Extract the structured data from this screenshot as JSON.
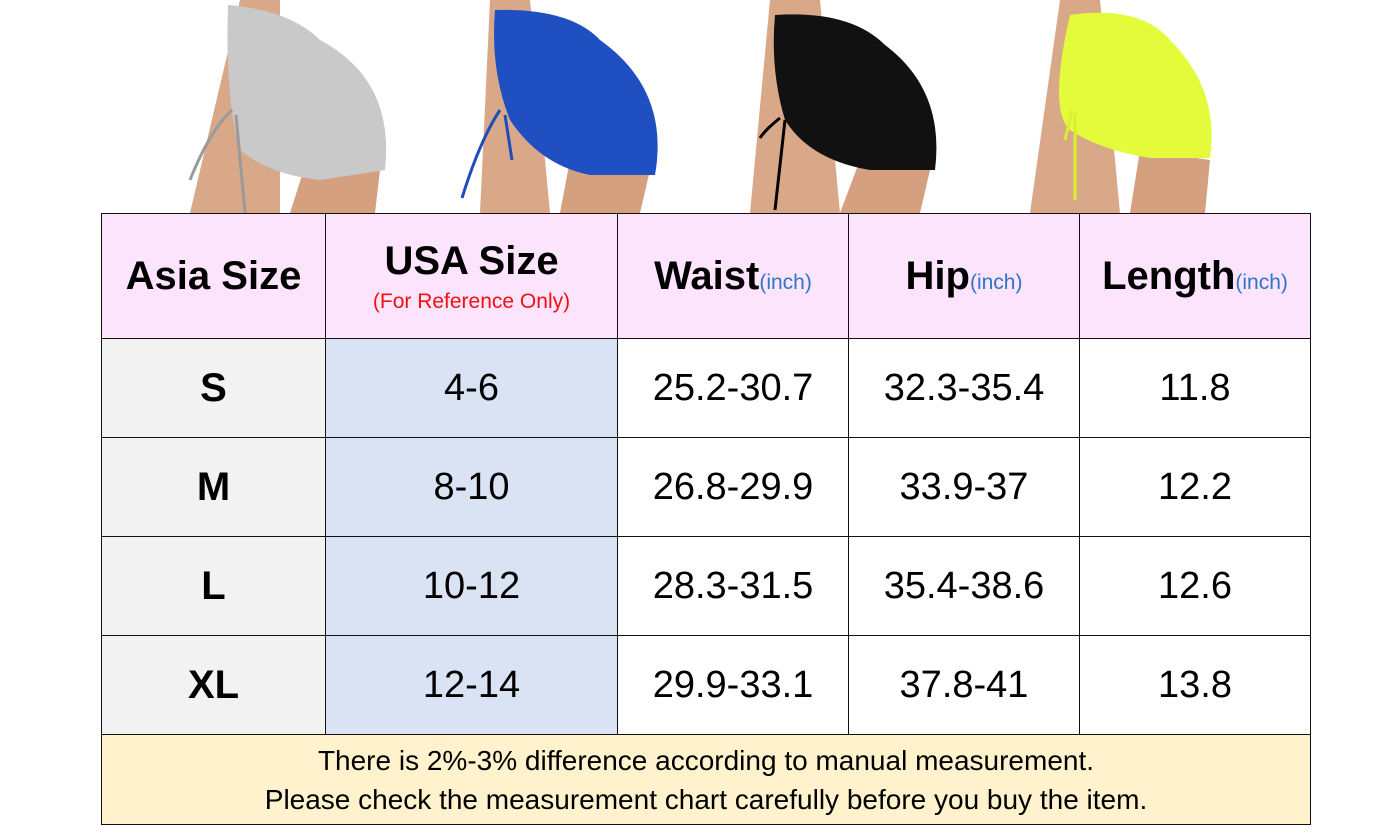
{
  "products": [
    {
      "color_name": "gray",
      "color": "#c9c9c9",
      "string": "#9a9a9a"
    },
    {
      "color_name": "blue",
      "color": "#1f4fc0",
      "string": "#1d4db8"
    },
    {
      "color_name": "black",
      "color": "#111111",
      "string": "#000000"
    },
    {
      "color_name": "neon-yellow",
      "color": "#e4fb3c",
      "string": "#d8f030"
    }
  ],
  "table": {
    "headers": [
      {
        "main": "Asia Size",
        "unit": "",
        "sub": ""
      },
      {
        "main": "USA Size",
        "unit": "",
        "sub": "(For Reference Only)"
      },
      {
        "main": "Waist",
        "unit": "(inch)",
        "sub": ""
      },
      {
        "main": "Hip",
        "unit": "(inch)",
        "sub": ""
      },
      {
        "main": "Length",
        "unit": "(inch)",
        "sub": ""
      }
    ],
    "rows": [
      [
        "S",
        "4-6",
        "25.2-30.7",
        "32.3-35.4",
        "11.8"
      ],
      [
        "M",
        "8-10",
        "26.8-29.9",
        "33.9-37",
        "12.2"
      ],
      [
        "L",
        "10-12",
        "28.3-31.5",
        "35.4-38.6",
        "12.6"
      ],
      [
        "XL",
        "12-14",
        "29.9-33.1",
        "37.8-41",
        "13.8"
      ]
    ],
    "note_lines": [
      "There is 2%-3% difference according to manual measurement.",
      "Please check the measurement chart carefully before you buy the item."
    ]
  },
  "colors": {
    "header_bg": "#fde4fd",
    "size_col_bg": "#f2f2f2",
    "usa_col_bg": "#dae3f3",
    "note_bg": "#fff2cc",
    "unit_text": "#2e75c6",
    "reference_text": "#f01010"
  }
}
